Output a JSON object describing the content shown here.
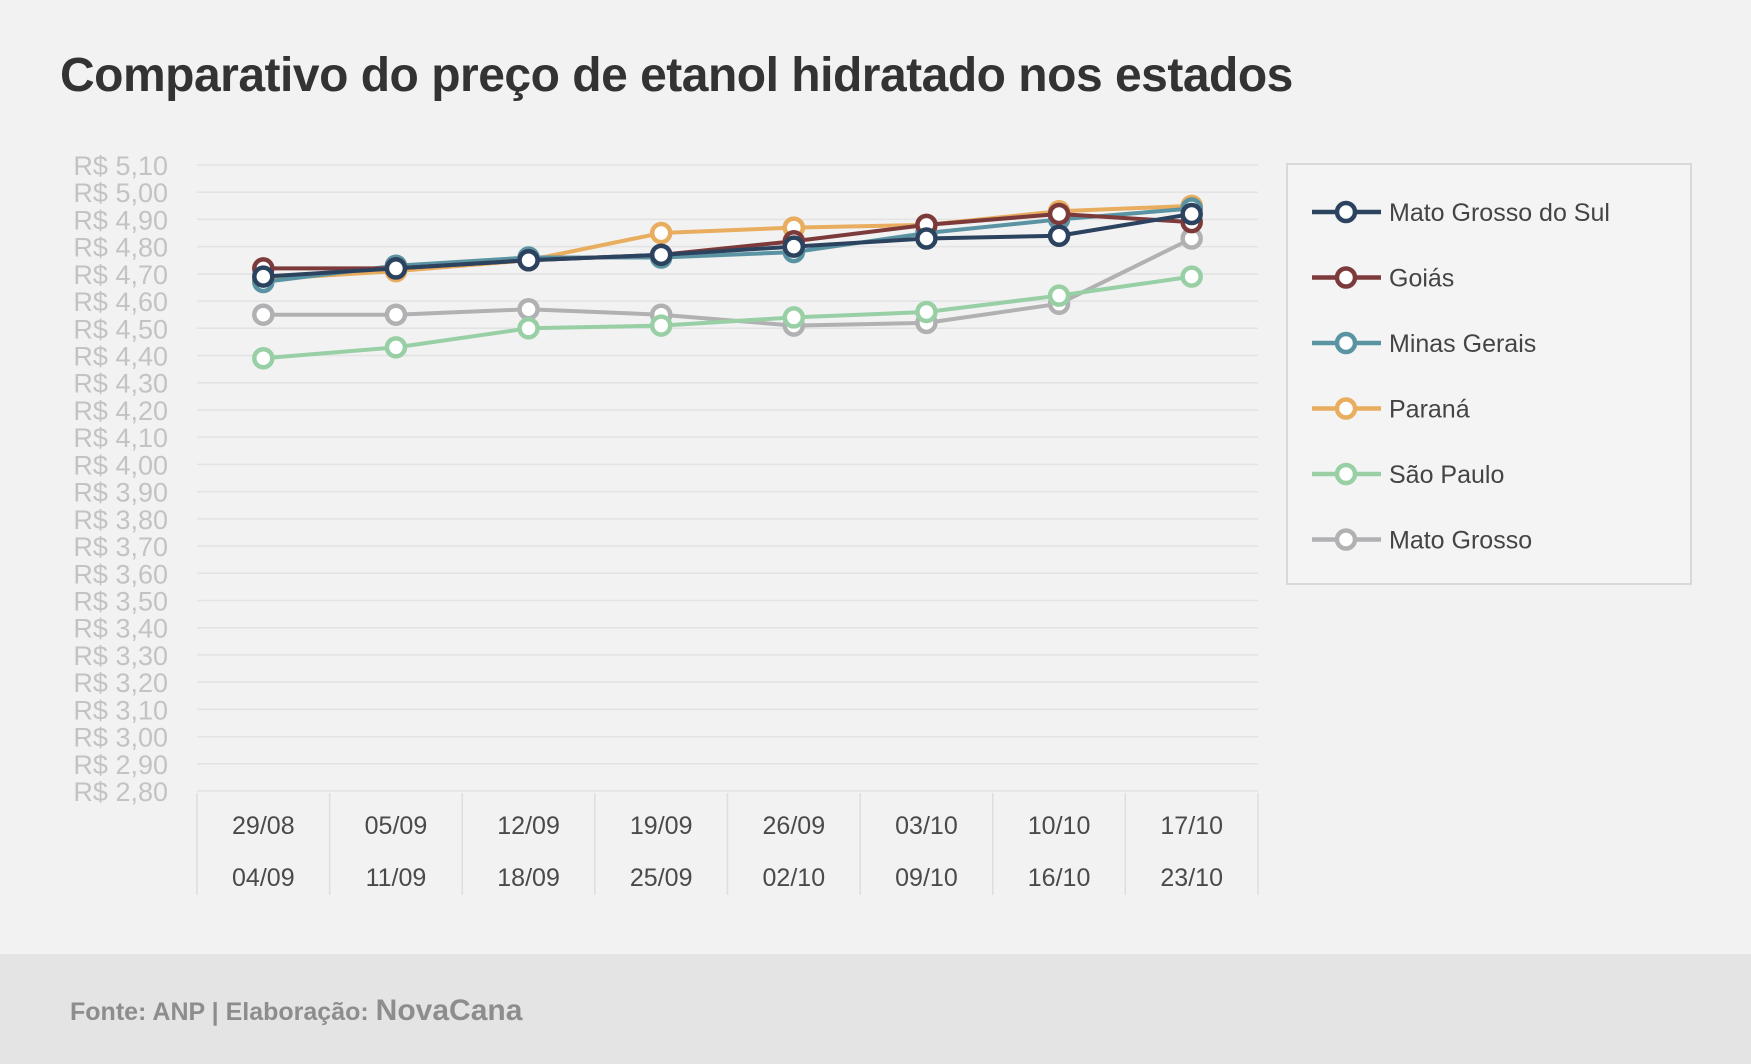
{
  "title": "Comparativo do preço de etanol hidratado nos estados",
  "footer": {
    "source": "Fonte: ANP | Elaboração:",
    "brand": "NovaCana"
  },
  "chart_data": {
    "type": "line",
    "title": "Comparativo do preço de etanol hidratado nos estados",
    "ylim": [
      2.8,
      5.1
    ],
    "ystep": 0.1,
    "y_tick_prefix": "R$ ",
    "grid": true,
    "legend_position": "right",
    "categories": [
      [
        "29/08",
        "04/09"
      ],
      [
        "05/09",
        "11/09"
      ],
      [
        "12/09",
        "18/09"
      ],
      [
        "19/09",
        "25/09"
      ],
      [
        "26/09",
        "02/10"
      ],
      [
        "03/10",
        "09/10"
      ],
      [
        "10/10",
        "16/10"
      ],
      [
        "17/10",
        "23/10"
      ]
    ],
    "series": [
      {
        "name": "Mato Grosso",
        "color": "#b1b1b3",
        "values": [
          4.55,
          4.55,
          4.57,
          4.55,
          4.51,
          4.52,
          4.59,
          4.83
        ]
      },
      {
        "name": "São Paulo",
        "color": "#98cfa5",
        "values": [
          4.39,
          4.43,
          4.5,
          4.51,
          4.54,
          4.56,
          4.62,
          4.69
        ]
      },
      {
        "name": "Paraná",
        "color": "#e8ad5e",
        "values": [
          4.68,
          4.71,
          4.75,
          4.85,
          4.87,
          4.88,
          4.93,
          4.95
        ]
      },
      {
        "name": "Minas Gerais",
        "color": "#5a93a2",
        "values": [
          4.67,
          4.73,
          4.76,
          4.76,
          4.78,
          4.85,
          4.9,
          4.94
        ]
      },
      {
        "name": "Goiás",
        "color": "#7d3a3b",
        "values": [
          4.72,
          4.72,
          4.75,
          4.77,
          4.82,
          4.88,
          4.92,
          4.89
        ]
      },
      {
        "name": "Mato Grosso do Sul",
        "color": "#2c4360",
        "values": [
          4.69,
          4.72,
          4.75,
          4.77,
          4.8,
          4.83,
          4.84,
          4.92
        ]
      }
    ],
    "legend_order": [
      "Mato Grosso do Sul",
      "Goiás",
      "Minas Gerais",
      "Paraná",
      "São Paulo",
      "Mato Grosso"
    ]
  }
}
